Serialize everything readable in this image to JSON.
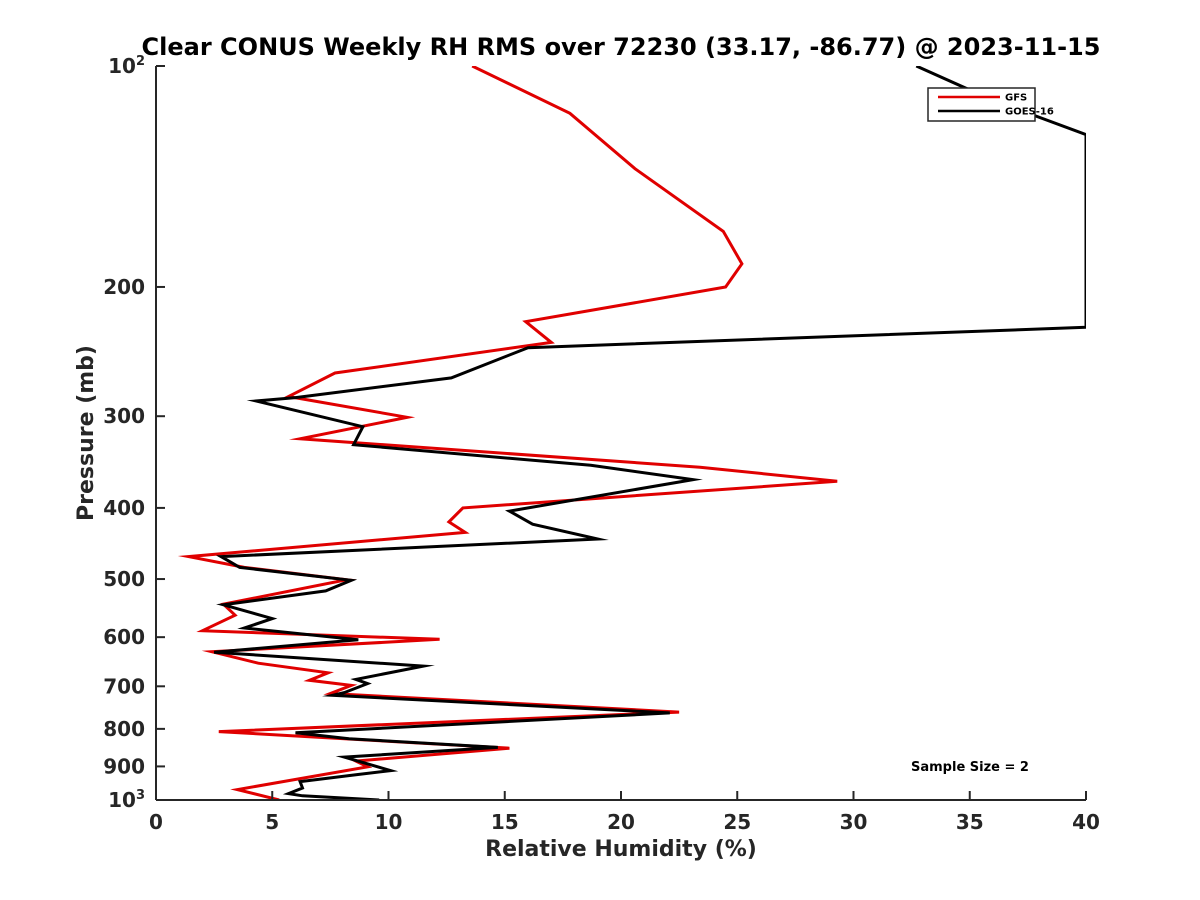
{
  "chart_data": {
    "type": "line",
    "title": "Clear CONUS Weekly RH RMS over 72230 (33.17, -86.77) @ 2023-11-15",
    "xlabel": "Relative Humidity (%)",
    "ylabel": "Pressure (mb)",
    "xlim": [
      0,
      40
    ],
    "ylim": [
      100,
      1000
    ],
    "yscale": "log",
    "y_reversed": true,
    "x_ticks": [
      "0",
      "5",
      "10",
      "15",
      "20",
      "25",
      "30",
      "35",
      "40"
    ],
    "y_ticks": [
      {
        "value": 100,
        "base": "10",
        "exp": "2"
      },
      {
        "value": 200,
        "base": "200",
        "exp": ""
      },
      {
        "value": 300,
        "base": "300",
        "exp": ""
      },
      {
        "value": 400,
        "base": "400",
        "exp": ""
      },
      {
        "value": 500,
        "base": "500",
        "exp": ""
      },
      {
        "value": 600,
        "base": "600",
        "exp": ""
      },
      {
        "value": 700,
        "base": "700",
        "exp": ""
      },
      {
        "value": 800,
        "base": "800",
        "exp": ""
      },
      {
        "value": 900,
        "base": "900",
        "exp": ""
      },
      {
        "value": 1000,
        "base": "10",
        "exp": "3"
      }
    ],
    "legend_position": "top-right",
    "annotation": "Sample Size = 2",
    "series": [
      {
        "name": "GFS",
        "color": "#e00000",
        "points": [
          [
            13.6,
            100
          ],
          [
            17.8,
            116
          ],
          [
            20.6,
            138
          ],
          [
            24.4,
            168
          ],
          [
            25.2,
            186
          ],
          [
            24.5,
            200
          ],
          [
            15.9,
            223
          ],
          [
            17.0,
            238
          ],
          [
            7.7,
            262
          ],
          [
            5.7,
            282
          ],
          [
            10.8,
            301
          ],
          [
            6.2,
            322
          ],
          [
            23.4,
            352
          ],
          [
            29.3,
            368
          ],
          [
            13.2,
            400
          ],
          [
            12.6,
            418
          ],
          [
            13.3,
            432
          ],
          [
            1.4,
            466
          ],
          [
            3.8,
            482
          ],
          [
            8.2,
            501
          ],
          [
            2.9,
            541
          ],
          [
            3.4,
            560
          ],
          [
            2.0,
            588
          ],
          [
            12.2,
            604
          ],
          [
            2.4,
            628
          ],
          [
            4.4,
            651
          ],
          [
            7.4,
            671
          ],
          [
            6.6,
            687
          ],
          [
            8.4,
            698
          ],
          [
            7.5,
            716
          ],
          [
            22.5,
            759
          ],
          [
            2.7,
            807
          ],
          [
            15.2,
            850
          ],
          [
            8.6,
            885
          ],
          [
            9.1,
            901
          ],
          [
            3.5,
            968
          ],
          [
            5.3,
            1000
          ]
        ]
      },
      {
        "name": "GOES-16",
        "color": "#000000",
        "points": [
          [
            32.7,
            100
          ],
          [
            35.9,
            111
          ],
          [
            40.0,
            124
          ],
          [
            40.0,
            227
          ],
          [
            16.0,
            242
          ],
          [
            12.7,
            266
          ],
          [
            6.0,
            283
          ],
          [
            4.3,
            286
          ],
          [
            8.9,
            310
          ],
          [
            8.5,
            328
          ],
          [
            18.7,
            350
          ],
          [
            23.1,
            366
          ],
          [
            15.2,
            404
          ],
          [
            16.2,
            421
          ],
          [
            19.0,
            441
          ],
          [
            2.8,
            466
          ],
          [
            3.6,
            482
          ],
          [
            8.4,
            502
          ],
          [
            7.3,
            519
          ],
          [
            2.9,
            542
          ],
          [
            5.0,
            566
          ],
          [
            3.8,
            583
          ],
          [
            8.7,
            605
          ],
          [
            2.5,
            629
          ],
          [
            11.5,
            657
          ],
          [
            8.6,
            685
          ],
          [
            9.1,
            694
          ],
          [
            8.1,
            714
          ],
          [
            7.6,
            720
          ],
          [
            22.1,
            761
          ],
          [
            6.0,
            810
          ],
          [
            8.3,
            825
          ],
          [
            14.7,
            848
          ],
          [
            8.1,
            874
          ],
          [
            10.1,
            912
          ],
          [
            8.6,
            924
          ],
          [
            6.2,
            944
          ],
          [
            6.3,
            963
          ],
          [
            5.7,
            980
          ],
          [
            6.3,
            987
          ],
          [
            9.6,
            1000
          ]
        ]
      }
    ]
  }
}
